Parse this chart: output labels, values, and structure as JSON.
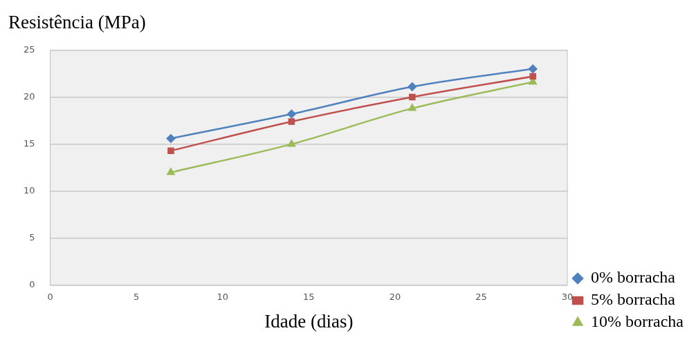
{
  "chart_data": {
    "type": "line",
    "title": "Resistência (MPa)",
    "xlabel": "Idade (dias)",
    "x": [
      7,
      14,
      21,
      28
    ],
    "series": [
      {
        "name": "0% borracha",
        "color": "#4f81bd",
        "marker": "diamond",
        "values": [
          15.6,
          18.2,
          21.1,
          23.0
        ]
      },
      {
        "name": "5% borracha",
        "color": "#c0504d",
        "marker": "square",
        "values": [
          14.3,
          17.4,
          20.0,
          22.2
        ]
      },
      {
        "name": "10% borracha",
        "color": "#9bbb59",
        "marker": "triangle",
        "values": [
          12.0,
          15.0,
          18.8,
          21.6
        ]
      }
    ],
    "xlim": [
      0,
      30
    ],
    "xticks": [
      0,
      5,
      10,
      15,
      20,
      25,
      30
    ],
    "ylim": [
      0,
      25
    ],
    "yticks": [
      0,
      5,
      10,
      15,
      20,
      25
    ],
    "grid": "y",
    "legend": "bottom right"
  }
}
